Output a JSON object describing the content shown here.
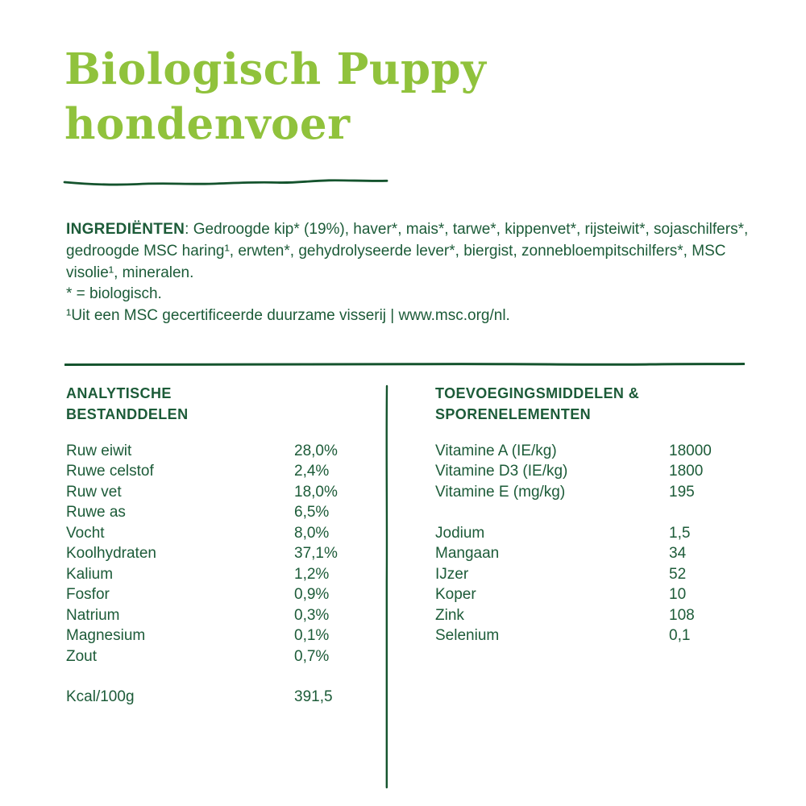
{
  "header": {
    "title_line1": "Biologisch Puppy",
    "title_line2": "hondenvoer"
  },
  "ingredients": {
    "label": "INGREDIËNTEN",
    "text": ": Gedroogde kip* (19%), haver*, mais*, tarwe*, kippenvet*, rijsteiwit*, sojaschilfers*, gedroogde MSC haring¹, erwten*, gehydrolyseerde lever*, biergist, zonnebloempitschilfers*, MSC visolie¹, mineralen.",
    "footnote_bio": "* = biologisch.",
    "footnote_msc": "¹Uit een MSC gecertificeerde duurzame visserij | www.msc.org/nl."
  },
  "analytical": {
    "heading_line1": "ANALYTISCHE",
    "heading_line2": "BESTANDDELEN",
    "rows": [
      {
        "label": "Ruw eiwit",
        "value": "28,0%"
      },
      {
        "label": "Ruwe celstof",
        "value": "2,4%"
      },
      {
        "label": "Ruw vet",
        "value": "18,0%"
      },
      {
        "label": "Ruwe as",
        "value": "6,5%"
      },
      {
        "label": "Vocht",
        "value": "8,0%"
      },
      {
        "label": "Koolhydraten",
        "value": "37,1%"
      },
      {
        "label": "Kalium",
        "value": "1,2%"
      },
      {
        "label": "Fosfor",
        "value": "0,9%"
      },
      {
        "label": "Natrium",
        "value": "0,3%"
      },
      {
        "label": "Magnesium",
        "value": "0,1%"
      },
      {
        "label": "Zout",
        "value": "0,7%"
      }
    ],
    "kcal": {
      "label": "Kcal/100g",
      "value": "391,5"
    }
  },
  "additives": {
    "heading_line1": "TOEVOEGINGSMIDDELEN &",
    "heading_line2": "SPORENELEMENTEN",
    "vitamins": [
      {
        "label": "Vitamine A (IE/kg)",
        "value": "18000"
      },
      {
        "label": "Vitamine D3 (IE/kg)",
        "value": "1800"
      },
      {
        "label": "Vitamine E (mg/kg)",
        "value": "195"
      }
    ],
    "minerals": [
      {
        "label": "Jodium",
        "value": "1,5"
      },
      {
        "label": "Mangaan",
        "value": "34"
      },
      {
        "label": "IJzer",
        "value": "52"
      },
      {
        "label": "Koper",
        "value": "10"
      },
      {
        "label": "Zink",
        "value": "108"
      },
      {
        "label": "Selenium",
        "value": "0,1"
      }
    ]
  },
  "colors": {
    "accent_green": "#90c23c",
    "dark_green": "#1c5b38",
    "line_green": "#14532d"
  }
}
